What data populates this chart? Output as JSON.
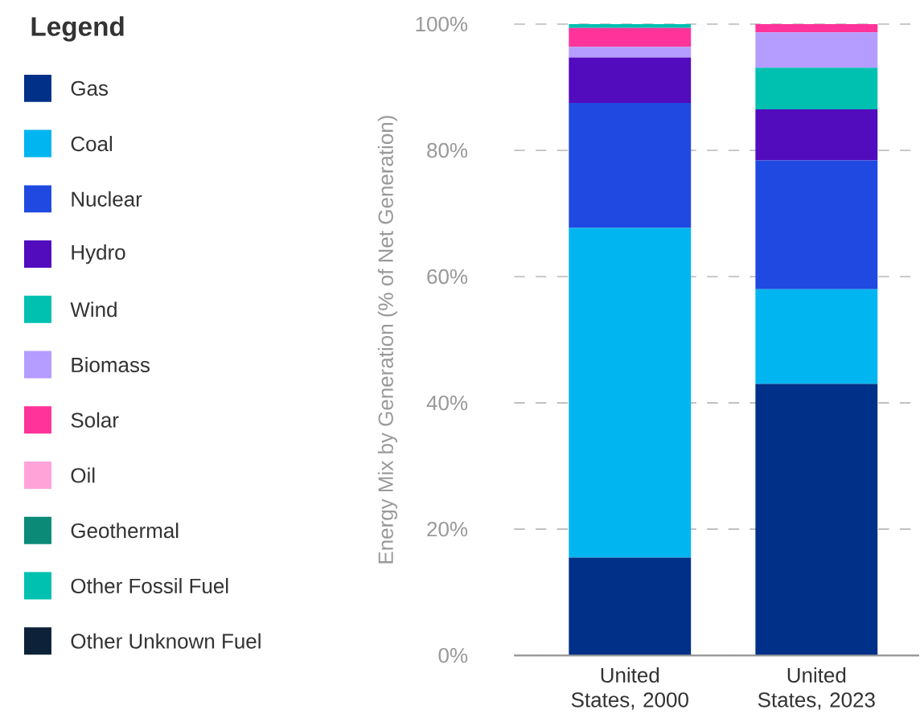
{
  "chart_data": {
    "type": "bar",
    "stacked": true,
    "legend": "left",
    "legend_title": "Legend",
    "grid": "y",
    "ylabel": "Energy Mix by Generation (% of Net Generation)",
    "categories": [
      "United States, 2000",
      "United States, 2023"
    ],
    "ylim": [
      0,
      100
    ],
    "yticks": [
      {
        "value": 0,
        "label": "0%"
      },
      {
        "value": 20,
        "label": "20%"
      },
      {
        "value": 40,
        "label": "40%"
      },
      {
        "value": 60,
        "label": "60%"
      },
      {
        "value": 80,
        "label": "80%"
      },
      {
        "value": 100,
        "label": "100%"
      }
    ],
    "series": [
      {
        "name": "Gas",
        "color": "#003087",
        "values": [
          15.5,
          43.0
        ]
      },
      {
        "name": "Coal",
        "color": "#00b5f0",
        "values": [
          52.2,
          15.0
        ]
      },
      {
        "name": "Nuclear",
        "color": "#1f49e0",
        "values": [
          19.8,
          20.4
        ]
      },
      {
        "name": "Hydro",
        "color": "#520bbd",
        "values": [
          7.2,
          8.1
        ]
      },
      {
        "name": "Wind",
        "color": "#00c0b0",
        "values": [
          null,
          6.6
        ]
      },
      {
        "name": "Biomass",
        "color": "#b59cff",
        "values": [
          1.7,
          5.6
        ]
      },
      {
        "name": "Solar",
        "color": "#ff3399",
        "values": [
          3.0,
          1.3
        ]
      },
      {
        "name": "Oil",
        "color": "#ffa3d9",
        "values": [
          null,
          null
        ]
      },
      {
        "name": "Geothermal",
        "color": "#0b8a78",
        "values": [
          null,
          null
        ]
      },
      {
        "name": "Other Fossil Fuel",
        "color": "#00c0b0",
        "values": [
          0.6,
          null
        ]
      },
      {
        "name": "Other Unknown Fuel",
        "color": "#0d2238",
        "values": [
          null,
          null
        ]
      }
    ]
  }
}
